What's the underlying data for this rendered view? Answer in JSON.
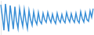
{
  "chart_data": {
    "type": "line",
    "categories": [
      null,
      null,
      null,
      null,
      null,
      null,
      null,
      null,
      null,
      null,
      null,
      null,
      null,
      null,
      null,
      null,
      null,
      null,
      null,
      null,
      null,
      null,
      null,
      null,
      null,
      null,
      null,
      null,
      null,
      null,
      null,
      null,
      null,
      null,
      null,
      null,
      null,
      null,
      null,
      null,
      null,
      null,
      null,
      null,
      null,
      null,
      null,
      null,
      null,
      null,
      null,
      null,
      null,
      null,
      null,
      null,
      null,
      null,
      null,
      null
    ],
    "values": [
      90,
      60,
      25,
      92,
      55,
      22,
      88,
      58,
      28,
      85,
      50,
      30,
      80,
      55,
      35,
      78,
      50,
      30,
      75,
      52,
      38,
      72,
      50,
      40,
      70,
      48,
      42,
      68,
      52,
      45,
      70,
      55,
      45,
      66,
      50,
      42,
      68,
      52,
      45,
      65,
      50,
      44,
      70,
      55,
      46,
      67,
      52,
      45,
      68,
      50,
      44,
      72,
      55,
      46,
      70,
      52,
      48,
      74,
      58,
      80
    ],
    "color": "#3a8fd6",
    "ylim": [
      15,
      100
    ],
    "grid": false,
    "tick_labels": false
  }
}
